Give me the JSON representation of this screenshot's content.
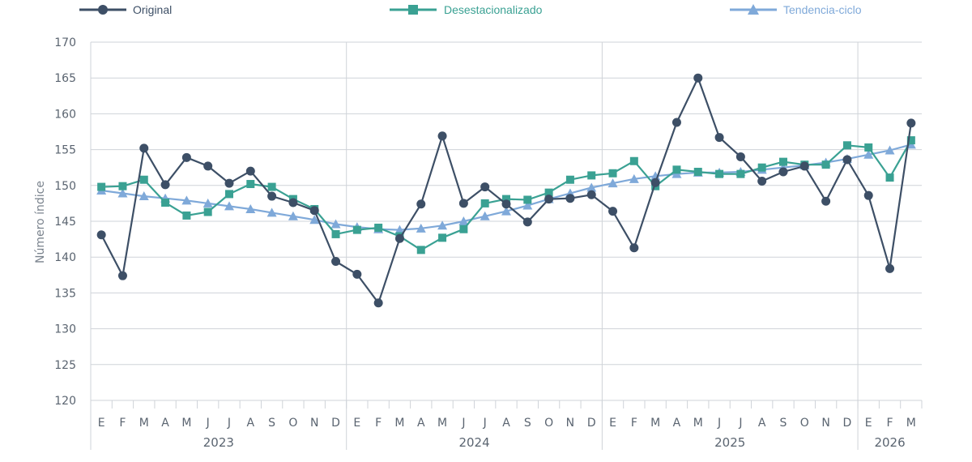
{
  "legend": {
    "original": "Original",
    "desestacionalizado": "Desestacionalizado",
    "tendencia": "Tendencia-ciclo"
  },
  "colors": {
    "original": "#3d4f66",
    "desestacionalizado": "#3aa193",
    "tendencia": "#7fa9d9",
    "grid": "#cfd3d8",
    "axis_text": "#5a6470"
  },
  "chart_data": {
    "type": "line",
    "ylabel": "Número índice",
    "ylim": [
      120,
      170
    ],
    "yticks": [
      120,
      125,
      130,
      135,
      140,
      145,
      150,
      155,
      160,
      165,
      170
    ],
    "grid": true,
    "legend_position": "top",
    "months": [
      "E",
      "F",
      "M",
      "A",
      "M",
      "J",
      "J",
      "A",
      "S",
      "O",
      "N",
      "D",
      "E",
      "F",
      "M",
      "A",
      "M",
      "J",
      "J",
      "A",
      "S",
      "O",
      "N",
      "D",
      "E",
      "F",
      "M",
      "A",
      "M",
      "J",
      "J",
      "A",
      "S",
      "O",
      "N",
      "D",
      "E",
      "F",
      "M"
    ],
    "years": [
      {
        "label": "2023",
        "months": 12
      },
      {
        "label": "2024",
        "months": 12
      },
      {
        "label": "2025",
        "months": 12
      },
      {
        "label": "2026",
        "months": 3
      }
    ],
    "series": [
      {
        "name": "Original",
        "marker": "circle",
        "values": [
          143.1,
          137.4,
          155.2,
          150.1,
          153.9,
          152.7,
          150.3,
          152.0,
          148.5,
          147.6,
          146.5,
          139.4,
          137.6,
          133.6,
          142.6,
          147.4,
          156.9,
          147.5,
          149.8,
          147.4,
          144.9,
          148.1,
          148.2,
          148.7,
          146.4,
          141.3,
          150.4,
          158.8,
          165.0,
          156.7,
          154.0,
          150.6,
          151.9,
          152.7,
          147.8,
          153.6,
          148.6,
          138.4,
          158.7
        ]
      },
      {
        "name": "Desestacionalizado",
        "marker": "square",
        "values": [
          149.8,
          149.9,
          150.8,
          147.6,
          145.8,
          146.3,
          148.8,
          150.2,
          149.8,
          148.1,
          146.7,
          143.2,
          143.8,
          144.1,
          142.9,
          141.0,
          142.7,
          143.9,
          147.5,
          148.1,
          148.0,
          149.0,
          150.8,
          151.4,
          151.7,
          153.4,
          149.9,
          152.2,
          151.9,
          151.6,
          151.6,
          152.5,
          153.3,
          152.9,
          152.9,
          155.6,
          155.3,
          151.1,
          156.3
        ]
      },
      {
        "name": "Tendencia-ciclo",
        "marker": "triangle",
        "values": [
          149.3,
          148.9,
          148.5,
          148.2,
          147.9,
          147.5,
          147.1,
          146.7,
          146.2,
          145.7,
          145.2,
          144.6,
          144.2,
          143.9,
          143.8,
          144.0,
          144.4,
          145.0,
          145.7,
          146.4,
          147.2,
          148.1,
          148.9,
          149.7,
          150.3,
          150.9,
          151.3,
          151.6,
          151.8,
          151.8,
          151.9,
          152.2,
          152.5,
          152.8,
          153.2,
          153.7,
          154.3,
          154.9,
          155.7
        ]
      }
    ]
  }
}
